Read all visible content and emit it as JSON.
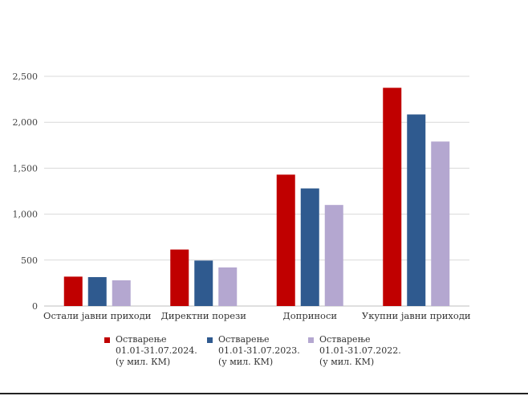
{
  "chart_data": {
    "type": "bar",
    "categories": [
      "Остали јавни приходи",
      "Директни порези",
      "Доприноси",
      "Укупни јавни приходи"
    ],
    "series": [
      {
        "name": "Остварење 01.01-31.07.2024. (у мил. КМ)",
        "name_lines": [
          "Остварење",
          "01.01-31.07.2024.",
          "(у мил. КМ)"
        ],
        "color": "#c00000",
        "values": [
          320,
          615,
          1430,
          2375
        ]
      },
      {
        "name": "Остварење 01.01-31.07.2023. (у мил. КМ)",
        "name_lines": [
          "Остварење",
          "01.01-31.07.2023.",
          "(у мил. КМ)"
        ],
        "color": "#2f5a8f",
        "values": [
          315,
          495,
          1280,
          2085
        ]
      },
      {
        "name": "Остварење 01.01-31.07.2022. (у мил. КМ)",
        "name_lines": [
          "Остварење",
          "01.01-31.07.2022.",
          "(у мил. КМ)"
        ],
        "color": "#b4a7d0",
        "values": [
          280,
          420,
          1100,
          1790
        ]
      }
    ],
    "yticks": [
      0,
      500,
      1000,
      1500,
      2000,
      2500
    ],
    "ytick_labels": [
      "0",
      "500",
      "1,000",
      "1,500",
      "2,000",
      "2,500"
    ],
    "ylim": [
      0,
      2500
    ],
    "grid": true,
    "legend_position": "bottom",
    "title": "",
    "xlabel": "",
    "ylabel": ""
  }
}
